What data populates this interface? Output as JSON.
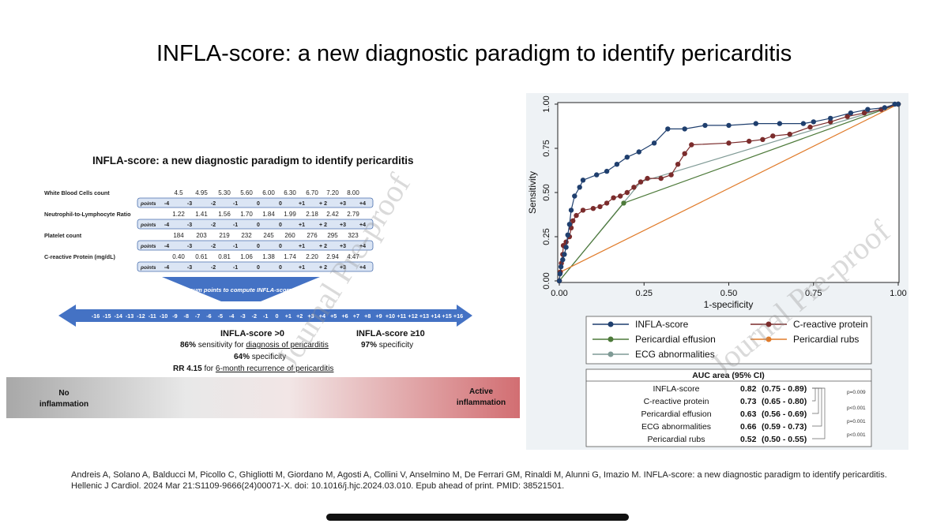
{
  "slide": {
    "title": "INFLA-score: a new diagnostic paradigm to identify pericarditis",
    "citation_line1": "Andreis A, Solano A, Balducci M, Picollo C, Ghigliotti M, Giordano M, Agosti A, Collini V, Anselmino M, De Ferrari GM, Rinaldi M, Alunni G, Imazio M. INFLA-score: a new diagnostic paradigm to identify pericarditis.",
    "citation_line2": "Hellenic J Cardiol. 2024 Mar 21:S1109-9666(24)00071-X. doi: 10.1016/j.hjc.2024.03.010. Epub ahead of print. PMID: 38521501."
  },
  "infographic": {
    "title": "INFLA-score: a new diagnostic paradigm to identify pericarditis",
    "points_label": "points",
    "point_values": [
      "-4",
      "-3",
      "-2",
      "-1",
      "0",
      "0",
      "+1",
      "+ 2",
      "+3",
      "+4"
    ],
    "parameters": [
      {
        "name": "White Blood Cells count",
        "cutoffs": [
          "4.5",
          "4.95",
          "5.30",
          "5.60",
          "6.00",
          "6.30",
          "6.70",
          "7.20",
          "8.00"
        ]
      },
      {
        "name": "Neutrophil-to-Lymphocyte Ratio",
        "cutoffs": [
          "1.22",
          "1.41",
          "1.56",
          "1.70",
          "1.84",
          "1.99",
          "2.18",
          "2.42",
          "2.79"
        ]
      },
      {
        "name": "Platelet count",
        "cutoffs": [
          "184",
          "203",
          "219",
          "232",
          "245",
          "260",
          "276",
          "295",
          "323"
        ]
      },
      {
        "name": "C-reactive Protein (mg/dL)",
        "cutoffs": [
          "0.40",
          "0.61",
          "0.81",
          "1.06",
          "1.38",
          "1.74",
          "2.20",
          "2.94",
          "4.47"
        ]
      }
    ],
    "sum_label": "sum points to compute INFLA-score",
    "scale": [
      "-16",
      "-15",
      "-14",
      "-13",
      "-12",
      "-11",
      "-10",
      "-9",
      "-8",
      "-7",
      "-6",
      "-5",
      "-4",
      "-3",
      "-2",
      "-1",
      "0",
      "+1",
      "+2",
      "+3",
      "+4",
      "+5",
      "+6",
      "+7",
      "+8",
      "+9",
      "+10",
      "+11",
      "+12",
      "+13",
      "+14",
      "+15",
      "+16"
    ],
    "threshold_gt0": "INFLA-score >0",
    "threshold_ge10": "INFLA-score ≥10",
    "sens_value": "86%",
    "sens_text": "sensitivity for",
    "sens_link": "diagnosis of pericarditis",
    "spec_ge10_value": "97%",
    "spec_ge10_text": "specificity",
    "spec_gt0_value": "64%",
    "spec_gt0_text": "specificity",
    "rr_value": "RR 4.15",
    "rr_text": "for",
    "rr_link": "6-month recurrence of pericarditis",
    "no_inflammation": [
      "No",
      "inflammation"
    ],
    "active_inflammation": [
      "Active",
      "inflammation"
    ]
  },
  "chart_data": {
    "type": "line",
    "title": "",
    "xlabel": "1-specificity",
    "ylabel": "Sensitivity",
    "xlim": [
      0,
      1
    ],
    "ylim": [
      0,
      1
    ],
    "x_ticks": [
      "0.00",
      "0.25",
      "0.50",
      "0.75",
      "1.00"
    ],
    "y_ticks": [
      "0.00",
      "0.25",
      "0.50",
      "0.75",
      "1.00"
    ],
    "series": [
      {
        "name": "INFLA-score",
        "color": "#1f3f6e",
        "points": [
          [
            0,
            0
          ],
          [
            0.002,
            0.04
          ],
          [
            0.005,
            0.08
          ],
          [
            0.01,
            0.12
          ],
          [
            0.015,
            0.15
          ],
          [
            0.02,
            0.19
          ],
          [
            0.025,
            0.26
          ],
          [
            0.03,
            0.32
          ],
          [
            0.035,
            0.4
          ],
          [
            0.045,
            0.48
          ],
          [
            0.06,
            0.53
          ],
          [
            0.07,
            0.57
          ],
          [
            0.11,
            0.6
          ],
          [
            0.14,
            0.62
          ],
          [
            0.17,
            0.66
          ],
          [
            0.2,
            0.7
          ],
          [
            0.235,
            0.73
          ],
          [
            0.28,
            0.78
          ],
          [
            0.32,
            0.86
          ],
          [
            0.37,
            0.86
          ],
          [
            0.43,
            0.88
          ],
          [
            0.5,
            0.88
          ],
          [
            0.58,
            0.89
          ],
          [
            0.65,
            0.89
          ],
          [
            0.72,
            0.89
          ],
          [
            0.75,
            0.9
          ],
          [
            0.8,
            0.92
          ],
          [
            0.86,
            0.95
          ],
          [
            0.91,
            0.97
          ],
          [
            0.96,
            0.98
          ],
          [
            0.99,
            1.0
          ],
          [
            1.0,
            1.0
          ]
        ]
      },
      {
        "name": "C-reactive protein",
        "color": "#7b2c2c",
        "points": [
          [
            0,
            0
          ],
          [
            0.003,
            0.05
          ],
          [
            0.006,
            0.1
          ],
          [
            0.01,
            0.15
          ],
          [
            0.012,
            0.2
          ],
          [
            0.02,
            0.22
          ],
          [
            0.03,
            0.25
          ],
          [
            0.035,
            0.3
          ],
          [
            0.04,
            0.34
          ],
          [
            0.05,
            0.37
          ],
          [
            0.07,
            0.4
          ],
          [
            0.1,
            0.41
          ],
          [
            0.12,
            0.42
          ],
          [
            0.14,
            0.44
          ],
          [
            0.16,
            0.47
          ],
          [
            0.18,
            0.48
          ],
          [
            0.2,
            0.5
          ],
          [
            0.22,
            0.53
          ],
          [
            0.24,
            0.56
          ],
          [
            0.26,
            0.58
          ],
          [
            0.3,
            0.58
          ],
          [
            0.33,
            0.6
          ],
          [
            0.35,
            0.66
          ],
          [
            0.37,
            0.72
          ],
          [
            0.39,
            0.77
          ],
          [
            0.5,
            0.78
          ],
          [
            0.56,
            0.79
          ],
          [
            0.6,
            0.8
          ],
          [
            0.63,
            0.82
          ],
          [
            0.68,
            0.83
          ],
          [
            0.74,
            0.87
          ],
          [
            0.8,
            0.9
          ],
          [
            0.85,
            0.93
          ],
          [
            0.9,
            0.95
          ],
          [
            0.95,
            0.97
          ],
          [
            1.0,
            1.0
          ]
        ]
      },
      {
        "name": "Pericardial effusion",
        "color": "#4d7a3a",
        "points": [
          [
            0,
            0
          ],
          [
            0.19,
            0.44
          ],
          [
            1.0,
            1.0
          ]
        ]
      },
      {
        "name": "Pericardial rubs",
        "color": "#e07b2a",
        "points": [
          [
            0,
            0
          ],
          [
            0.003,
            0.05
          ],
          [
            1.0,
            1.0
          ]
        ]
      },
      {
        "name": "ECG abnormalities",
        "color": "#7f9a95",
        "points": [
          [
            0,
            0
          ],
          [
            0.24,
            0.56
          ],
          [
            1.0,
            1.0
          ]
        ]
      }
    ],
    "legend_position": "below",
    "auc_table": {
      "header": "AUC area (95% CI)",
      "rows": [
        {
          "label": "INFLA-score",
          "auc": "0.82",
          "ci": "(0.75 - 0.89)"
        },
        {
          "label": "C-reactive protein",
          "auc": "0.73",
          "ci": "(0.65 - 0.80)"
        },
        {
          "label": "Pericardial effusion",
          "auc": "0.63",
          "ci": "(0.56 - 0.69)"
        },
        {
          "label": "ECG abnormalities",
          "auc": "0.66",
          "ci": "(0.59 - 0.73)"
        },
        {
          "label": "Pericardial rubs",
          "auc": "0.52",
          "ci": "(0.50 - 0.55)"
        }
      ],
      "p_values": [
        "p=0.009",
        "p<0.001",
        "p=0.001",
        "p<0.001"
      ]
    },
    "watermark": "Journal Pre-proof"
  }
}
